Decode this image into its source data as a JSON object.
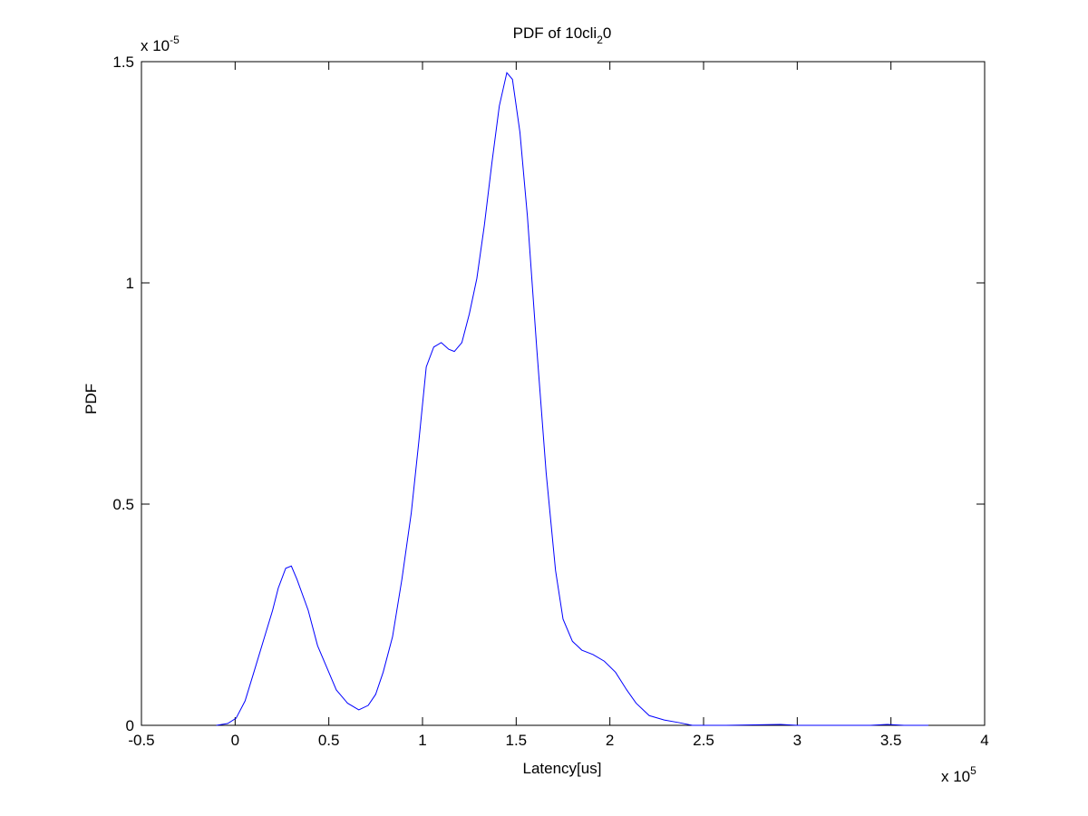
{
  "chart_data": {
    "type": "line",
    "title": {
      "text": "PDF of 10cli",
      "subscript": "2",
      "suffix": "0"
    },
    "x_label": "Latency[us]",
    "y_label": "PDF",
    "x_multiplier": {
      "base": "x 10",
      "exponent": "5"
    },
    "y_multiplier": {
      "base": "x 10",
      "exponent": "-5"
    },
    "xlim": [
      -0.5,
      4
    ],
    "xticks": [
      -0.5,
      0,
      0.5,
      1,
      1.5,
      2,
      2.5,
      3,
      3.5,
      4
    ],
    "ylim": [
      0,
      1.5
    ],
    "yticks": [
      0,
      0.5,
      1,
      1.5
    ],
    "grid": false,
    "series": [
      {
        "color": "#0000ff",
        "x": [
          -0.1,
          -0.04,
          0.005,
          0.053,
          0.1,
          0.15,
          0.2,
          0.23,
          0.27,
          0.3,
          0.33,
          0.39,
          0.44,
          0.49,
          0.54,
          0.6,
          0.66,
          0.71,
          0.75,
          0.79,
          0.84,
          0.89,
          0.94,
          0.98,
          1.02,
          1.06,
          1.1,
          1.14,
          1.17,
          1.21,
          1.25,
          1.29,
          1.33,
          1.37,
          1.41,
          1.45,
          1.48,
          1.52,
          1.56,
          1.61,
          1.66,
          1.71,
          1.75,
          1.8,
          1.85,
          1.91,
          1.97,
          2.03,
          2.09,
          2.14,
          2.21,
          2.29,
          2.37,
          2.44,
          2.62,
          2.91,
          3.0,
          3.39,
          3.48,
          3.57,
          3.7
        ],
        "values": [
          0,
          0.004,
          0.016,
          0.055,
          0.12,
          0.19,
          0.26,
          0.31,
          0.355,
          0.36,
          0.33,
          0.26,
          0.18,
          0.13,
          0.08,
          0.05,
          0.035,
          0.045,
          0.07,
          0.12,
          0.2,
          0.33,
          0.48,
          0.64,
          0.81,
          0.855,
          0.865,
          0.85,
          0.845,
          0.865,
          0.93,
          1.01,
          1.13,
          1.27,
          1.4,
          1.475,
          1.46,
          1.34,
          1.15,
          0.85,
          0.57,
          0.35,
          0.24,
          0.19,
          0.17,
          0.16,
          0.145,
          0.12,
          0.08,
          0.05,
          0.022,
          0.012,
          0.006,
          0,
          0,
          0.002,
          0,
          0,
          0.002,
          0,
          0
        ]
      }
    ]
  }
}
